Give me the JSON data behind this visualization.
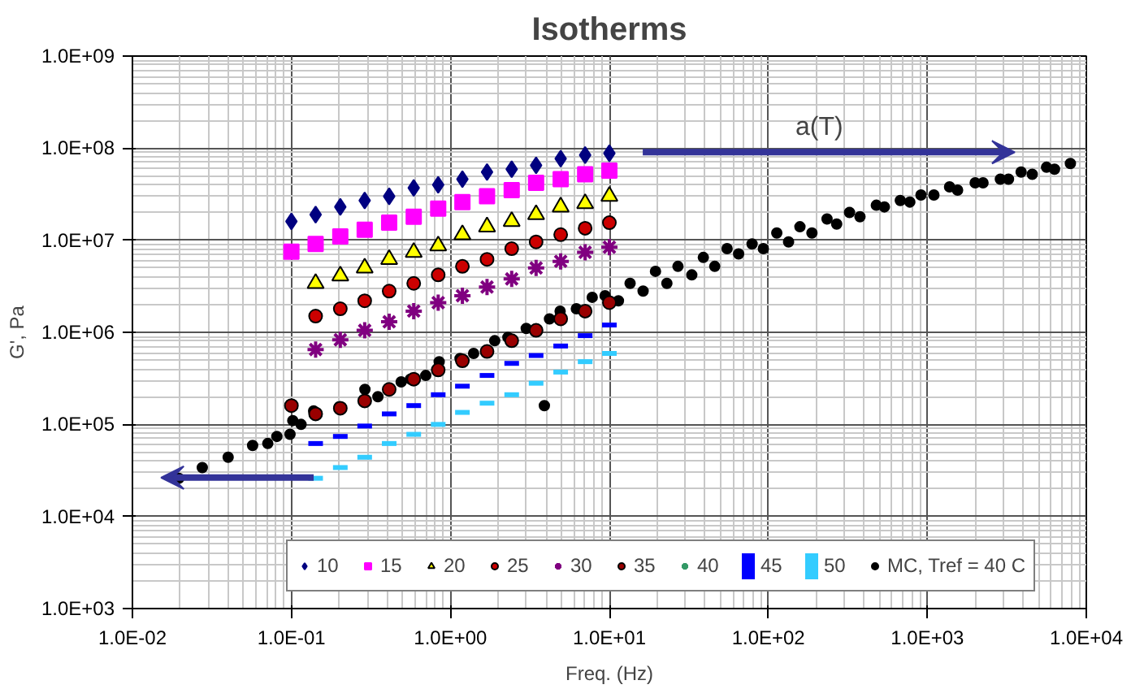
{
  "chart_data": {
    "type": "scatter",
    "title": "Isotherms",
    "xlabel": "Freq. (Hz)",
    "ylabel": "G', Pa",
    "log": "xy",
    "grid": true,
    "legend": "bottom",
    "xlim": [
      0.01,
      10000
    ],
    "ylim": [
      1000,
      1000000000
    ],
    "xticks": [
      {
        "value": 0.01,
        "label": "1.0E-02"
      },
      {
        "value": 0.1,
        "label": "1.0E-01"
      },
      {
        "value": 1,
        "label": "1.0E+00"
      },
      {
        "value": 10,
        "label": "1.0E+01"
      },
      {
        "value": 100,
        "label": "1.0E+02"
      },
      {
        "value": 1000,
        "label": "1.0E+03"
      },
      {
        "value": 10000,
        "label": "1.0E+04"
      }
    ],
    "yticks": [
      {
        "value": 1000,
        "label": "1.0E+03"
      },
      {
        "value": 10000,
        "label": "1.0E+04"
      },
      {
        "value": 100000,
        "label": "1.0E+05"
      },
      {
        "value": 1000000,
        "label": "1.0E+06"
      },
      {
        "value": 10000000,
        "label": "1.0E+07"
      },
      {
        "value": 100000000,
        "label": "1.0E+08"
      },
      {
        "value": 1000000000,
        "label": "1.0E+09"
      }
    ],
    "annotations": [
      "a(T)"
    ],
    "x": [
      0.1,
      0.142,
      0.203,
      0.289,
      0.412,
      0.588,
      0.838,
      1.19,
      1.7,
      2.43,
      3.46,
      4.94,
      7.04,
      10.0
    ],
    "series": [
      {
        "name": "10",
        "color": "#000080",
        "marker": "diamond",
        "values": [
          16000000,
          19000000,
          23000000,
          27000000,
          30000000,
          37000000,
          40000000,
          46000000,
          55000000,
          59000000,
          65000000,
          77000000,
          84000000,
          88000000
        ]
      },
      {
        "name": "15",
        "color": "#ff00ff",
        "marker": "square",
        "values": [
          7500000,
          9100000,
          11000000,
          13000000,
          15500000,
          18000000,
          22000000,
          26000000,
          30000000,
          35000000,
          42000000,
          46000000,
          52000000,
          57000000
        ]
      },
      {
        "name": "20",
        "color": "#ffff00",
        "marker": "triangle",
        "values": [
          null,
          3400000,
          4100000,
          5000000,
          6200000,
          7400000,
          8700000,
          11500000,
          14000000,
          16000000,
          19000000,
          23000000,
          25000000,
          30000000
        ]
      },
      {
        "name": "25",
        "color": "#cc0000",
        "marker": "circle",
        "values": [
          null,
          1500000,
          1800000,
          2200000,
          2800000,
          3400000,
          4200000,
          5200000,
          6200000,
          8100000,
          9600000,
          11500000,
          13500000,
          15500000
        ]
      },
      {
        "name": "30",
        "color": "#800080",
        "marker": "cross",
        "values": [
          null,
          650000,
          830000,
          1050000,
          1300000,
          1700000,
          2100000,
          2500000,
          3100000,
          3800000,
          5000000,
          5900000,
          7400000,
          8400000
        ]
      },
      {
        "name": "35",
        "color": "#990000",
        "marker": "circle",
        "values": [
          160000,
          130000,
          150000,
          180000,
          240000,
          310000,
          390000,
          490000,
          620000,
          810000,
          1050000,
          1400000,
          1700000,
          2100000
        ]
      },
      {
        "name": "40",
        "color": "#339966",
        "marker": "cross",
        "values": [
          null,
          null,
          null,
          null,
          null,
          null,
          null,
          null,
          null,
          null,
          null,
          null,
          null,
          null
        ]
      },
      {
        "name": "45",
        "color": "#0000ff",
        "values": [
          null,
          62000,
          74000,
          96000,
          130000,
          160000,
          210000,
          260000,
          340000,
          460000,
          560000,
          710000,
          920000,
          1200000
        ]
      },
      {
        "name": "50",
        "color": "#33ccff",
        "values": [
          null,
          26000,
          34000,
          44000,
          62000,
          78000,
          100000,
          135000,
          170000,
          210000,
          280000,
          370000,
          480000,
          590000
        ]
      },
      {
        "name": "MC, Tref = 40 C",
        "color": "#000000",
        "marker": "circle",
        "x": [
          0.0196,
          0.0275,
          0.04,
          0.057,
          0.071,
          0.081,
          0.098,
          0.102,
          0.115,
          0.138,
          0.2,
          0.29,
          0.35,
          0.49,
          0.56,
          0.7,
          0.85,
          1.15,
          1.4,
          1.9,
          2.3,
          3.0,
          3.9,
          4.2,
          4.9,
          6.2,
          7.8,
          9.4,
          11.4,
          13.5,
          16.3,
          19.5,
          23,
          27,
          33,
          39,
          46,
          55,
          65,
          79,
          93,
          113,
          134,
          158,
          188,
          234,
          269,
          324,
          377,
          478,
          537,
          676,
          776,
          912,
          1100,
          1380,
          1550,
          2000,
          2240,
          2880,
          3240,
          3890,
          4570,
          5620,
          6310,
          7940
        ],
        "values": [
          26000,
          34000,
          44000,
          59000,
          62000,
          74000,
          78000,
          110000,
          100000,
          140000,
          155000,
          240000,
          200000,
          290000,
          310000,
          340000,
          480000,
          520000,
          590000,
          810000,
          880000,
          1100000,
          160000,
          1400000,
          1700000,
          1800000,
          2400000,
          2500000,
          2200000,
          3400000,
          2800000,
          4600000,
          3400000,
          5200000,
          4200000,
          6500000,
          5200000,
          8100000,
          7100000,
          9100000,
          8100000,
          12000000,
          9600000,
          14000000,
          12000000,
          17000000,
          15000000,
          20000000,
          18000000,
          24000000,
          23000000,
          27000000,
          26000000,
          31000000,
          31000000,
          38000000,
          35000000,
          42000000,
          42000000,
          46000000,
          46000000,
          55000000,
          52000000,
          62000000,
          59000000,
          68000000
        ]
      }
    ]
  }
}
